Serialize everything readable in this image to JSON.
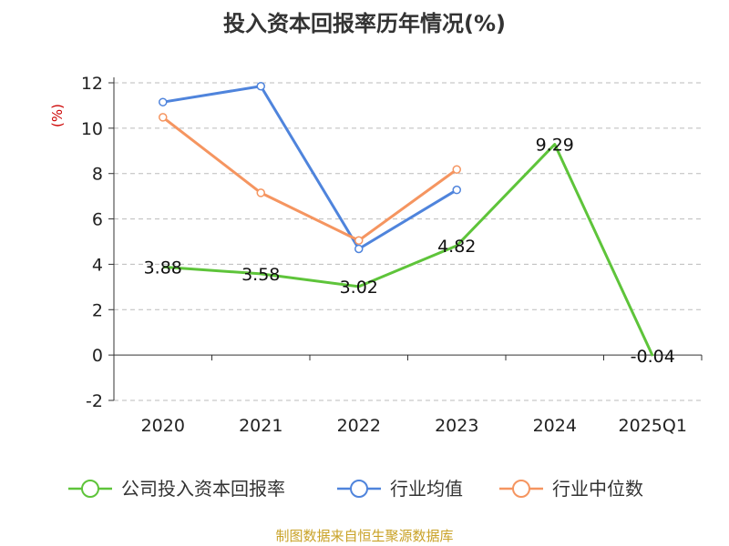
{
  "title": "投入资本回报率历年情况(%)",
  "source": "制图数据来自恒生聚源数据库",
  "chart_data": {
    "type": "line",
    "title": "投入资本回报率历年情况(%)",
    "ylabel": "(%)",
    "ylim": [
      -2,
      12
    ],
    "yticks": [
      -2,
      0,
      2,
      4,
      6,
      8,
      10,
      12
    ],
    "categories": [
      "2020",
      "2021",
      "2022",
      "2023",
      "2024",
      "2025Q1"
    ],
    "grid": true,
    "legend_position": "bottom",
    "series": [
      {
        "name": "公司投入资本回报率",
        "color": "#5ec43a",
        "values": [
          3.88,
          3.58,
          3.02,
          4.82,
          9.29,
          -0.04
        ],
        "labels": [
          "3.88",
          "3.58",
          "3.02",
          "4.82",
          "9.29",
          "-0.04"
        ]
      },
      {
        "name": "行业均值",
        "color": "#4f84dc",
        "values": [
          11.15,
          11.85,
          4.68,
          7.28,
          null,
          null
        ]
      },
      {
        "name": "行业中位数",
        "color": "#f59560",
        "values": [
          10.48,
          7.15,
          5.05,
          8.18,
          null,
          null
        ]
      }
    ]
  }
}
